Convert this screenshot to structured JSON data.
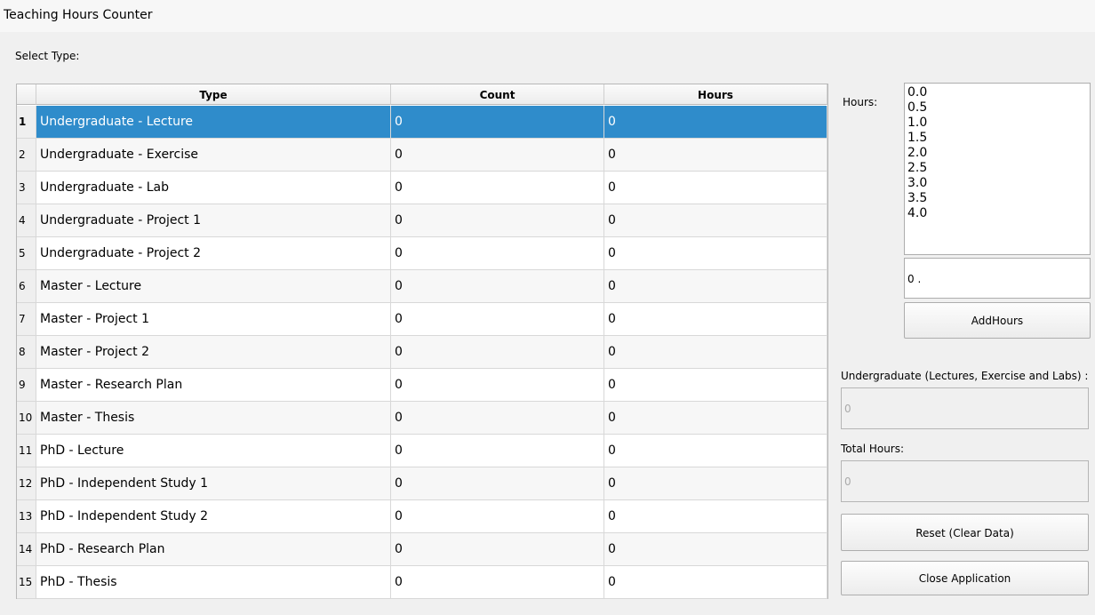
{
  "window": {
    "title": "Teaching Hours Counter"
  },
  "select_label": "Select Type:",
  "table": {
    "columns": [
      "Type",
      "Count",
      "Hours"
    ],
    "rows": [
      {
        "num": 1,
        "type": "Undergraduate - Lecture",
        "count": 0,
        "hours": 0,
        "selected": true
      },
      {
        "num": 2,
        "type": "Undergraduate - Exercise",
        "count": 0,
        "hours": 0
      },
      {
        "num": 3,
        "type": "Undergraduate - Lab",
        "count": 0,
        "hours": 0
      },
      {
        "num": 4,
        "type": "Undergraduate - Project 1",
        "count": 0,
        "hours": 0
      },
      {
        "num": 5,
        "type": "Undergraduate - Project 2",
        "count": 0,
        "hours": 0
      },
      {
        "num": 6,
        "type": "Master - Lecture",
        "count": 0,
        "hours": 0
      },
      {
        "num": 7,
        "type": "Master - Project 1",
        "count": 0,
        "hours": 0
      },
      {
        "num": 8,
        "type": "Master - Project 2",
        "count": 0,
        "hours": 0
      },
      {
        "num": 9,
        "type": "Master - Research Plan",
        "count": 0,
        "hours": 0
      },
      {
        "num": 10,
        "type": "Master - Thesis",
        "count": 0,
        "hours": 0
      },
      {
        "num": 11,
        "type": "PhD - Lecture",
        "count": 0,
        "hours": 0
      },
      {
        "num": 12,
        "type": "PhD - Independent Study 1",
        "count": 0,
        "hours": 0
      },
      {
        "num": 13,
        "type": "PhD - Independent Study 2",
        "count": 0,
        "hours": 0
      },
      {
        "num": 14,
        "type": "PhD - Research Plan",
        "count": 0,
        "hours": 0
      },
      {
        "num": 15,
        "type": "PhD - Thesis",
        "count": 0,
        "hours": 0
      }
    ]
  },
  "hours": {
    "label": "Hours:",
    "options": [
      "0.0",
      "0.5",
      "1.0",
      "1.5",
      "2.0",
      "2.5",
      "3.0",
      "3.5",
      "4.0"
    ],
    "input": "0 .",
    "button": "AddHours"
  },
  "undergrad": {
    "label": "Undergraduate (Lectures, Exercise and Labs) :",
    "value": "0"
  },
  "total": {
    "label": "Total Hours:",
    "value": "0"
  },
  "reset_button": "Reset (Clear Data)",
  "close_button": "Close Application"
}
